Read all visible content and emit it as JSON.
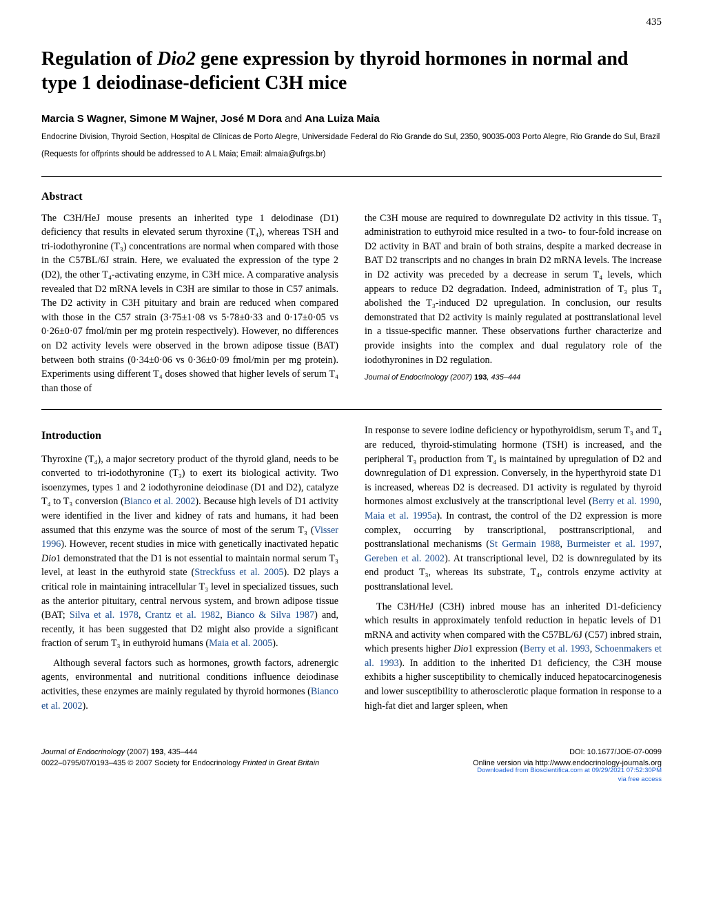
{
  "page_number": "435",
  "title_part1": "Regulation of ",
  "title_italic": "Dio2",
  "title_part2": " gene expression by thyroid hormones in normal and type 1 deiodinase-deficient C3H mice",
  "authors_bold1": "Marcia S Wagner, Simone M Wajner, José M Dora",
  "authors_and": " and ",
  "authors_bold2": "Ana Luiza Maia",
  "affiliation": "Endocrine Division, Thyroid Section, Hospital de Clínicas de Porto Alegre, Universidade Federal do Rio Grande do Sul, 2350, 90035-003 Porto Alegre, Rio Grande do Sul, Brazil",
  "correspondence": "(Requests for offprints should be addressed to A L Maia; Email: almaia@ufrgs.br)",
  "abstract_heading": "Abstract",
  "abstract_col1": "The C3H/HeJ mouse presents an inherited type 1 deiodinase (D1) deficiency that results in elevated serum thyroxine (T₄), whereas TSH and tri-iodothyronine (T₃) concentrations are normal when compared with those in the C57BL/6J strain. Here, we evaluated the expression of the type 2 (D2), the other T₄-activating enzyme, in C3H mice. A comparative analysis revealed that D2 mRNA levels in C3H are similar to those in C57 animals. The D2 activity in C3H pituitary and brain are reduced when compared with those in the C57 strain (3·75±1·08 vs 5·78±0·33 and 0·17±0·05 vs 0·26±0·07 fmol/min per mg protein respectively). However, no differences on D2 activity levels were observed in the brown adipose tissue (BAT) between both strains (0·34±0·06 vs 0·36±0·09 fmol/min per mg protein). Experiments using different T₄ doses showed that higher levels of serum T₄ than those of",
  "abstract_col2_p1": "the C3H mouse are required to downregulate D2 activity in this tissue. T₃ administration to euthyroid mice resulted in a two- to four-fold increase on D2 activity in BAT and brain of both strains, despite a marked decrease in BAT D2 transcripts and no changes in brain D2 mRNA levels. The increase in D2 activity was preceded by a decrease in serum T₄ levels, which appears to reduce D2 degradation. Indeed, administration of T₃ plus T₄ abolished the T₃-induced D2 upregulation. In conclusion, our results demonstrated that D2 activity is mainly regulated at posttranslational level in a tissue-specific manner. These observations further characterize and provide insights into the complex and dual regulatory role of the iodothyronines in D2 regulation.",
  "journal_citation_text": "Journal of Endocrinology",
  "journal_citation_year": " (2007) ",
  "journal_citation_vol": "193",
  "journal_citation_pages": ", 435–444",
  "intro_heading": "Introduction",
  "intro_col1_p1_a": "Thyroxine (T₄), a major secretory product of the thyroid gland, needs to be converted to tri-iodothyronine (T₃) to exert its biological activity. Two isoenzymes, types 1 and 2 iodothyronine deiodinase (D1 and D2), catalyze T₄ to T₃ conversion (",
  "intro_col1_p1_link1": "Bianco et al. 2002",
  "intro_col1_p1_b": "). Because high levels of D1 activity were identified in the liver and kidney of rats and humans, it had been assumed that this enzyme was the source of most of the serum T₃ (",
  "intro_col1_p1_link2": "Visser 1996",
  "intro_col1_p1_c": "). However, recent studies in mice with genetically inactivated hepatic ",
  "intro_col1_p1_italic1": "Dio",
  "intro_col1_p1_d": "1 demonstrated that the D1 is not essential to maintain normal serum T₃ level, at least in the euthyroid state (",
  "intro_col1_p1_link3": "Streckfuss et al. 2005",
  "intro_col1_p1_e": "). D2 plays a critical role in maintaining intracellular T₃ level in specialized tissues, such as the anterior pituitary, central nervous system, and brown adipose tissue (BAT; ",
  "intro_col1_p1_link4": "Silva et al. 1978",
  "intro_col1_p1_f": ", ",
  "intro_col1_p1_link5": "Crantz et al. 1982",
  "intro_col1_p1_g": ", ",
  "intro_col1_p1_link6": "Bianco & Silva 1987",
  "intro_col1_p1_h": ") and, recently, it has been suggested that D2 might also provide a significant fraction of serum T₃ in euthyroid humans (",
  "intro_col1_p1_link7": "Maia et al. 2005",
  "intro_col1_p1_i": ").",
  "intro_col1_p2_a": "Although several factors such as hormones, growth factors, adrenergic agents, environmental and nutritional conditions influence deiodinase activities, these enzymes are mainly regulated by thyroid hormones (",
  "intro_col1_p2_link1": "Bianco et al. 2002",
  "intro_col1_p2_b": ").",
  "intro_col2_p1_a": "In response to severe iodine deficiency or hypothyroidism, serum T₃ and T₄ are reduced, thyroid-stimulating hormone (TSH) is increased, and the peripheral T₃ production from T₄ is maintained by upregulation of D2 and downregulation of D1 expression. Conversely, in the hyperthyroid state D1 is increased, whereas D2 is decreased. D1 activity is regulated by thyroid hormones almost exclusively at the transcriptional level (",
  "intro_col2_p1_link1": "Berry et al. 1990",
  "intro_col2_p1_b": ", ",
  "intro_col2_p1_link2": "Maia et al. 1995a",
  "intro_col2_p1_c": "). In contrast, the control of the D2 expression is more complex, occurring by transcriptional, posttranscriptional, and posttranslational mechanisms (",
  "intro_col2_p1_link3": "St Germain 1988",
  "intro_col2_p1_d": ", ",
  "intro_col2_p1_link4": "Burmeister et al. 1997",
  "intro_col2_p1_e": ", ",
  "intro_col2_p1_link5": "Gereben et al. 2002",
  "intro_col2_p1_f": "). At transcriptional level, D2 is downregulated by its end product T₃, whereas its substrate, T₄, controls enzyme activity at posttranslational level.",
  "intro_col2_p2_a": "The C3H/HeJ (C3H) inbred mouse has an inherited D1-deficiency which results in approximately tenfold reduction in hepatic levels of D1 mRNA and activity when compared with the C57BL/6J (C57) inbred strain, which presents higher ",
  "intro_col2_p2_italic1": "Dio",
  "intro_col2_p2_b": "1 expression (",
  "intro_col2_p2_link1": "Berry et al. 1993",
  "intro_col2_p2_c": ", ",
  "intro_col2_p2_link2": "Schoenmakers et al. 1993",
  "intro_col2_p2_d": "). In addition to the inherited D1 deficiency, the C3H mouse exhibits a higher susceptibility to chemically induced hepatocarcinogenesis and lower susceptibility to atherosclerotic plaque formation in response to a high-fat diet and larger spleen, when",
  "footer_left_line1_italic": "Journal of Endocrinology",
  "footer_left_line1_rest": " (2007) ",
  "footer_left_line1_vol": "193",
  "footer_left_line1_pages": ", 435–444",
  "footer_left_line2": "0022–0795/07/0193–435  © 2007 Society for Endocrinology  ",
  "footer_left_line2_italic": "Printed in Great Britain",
  "footer_right_line1": "DOI: 10.1677/JOE-07-0099",
  "footer_right_line2": "Online version via http://www.endocrinology-journals.org",
  "watermark_line1": "Downloaded from Bioscientifica.com at 09/29/2021 07:52:30PM",
  "watermark_line2": "via free access"
}
